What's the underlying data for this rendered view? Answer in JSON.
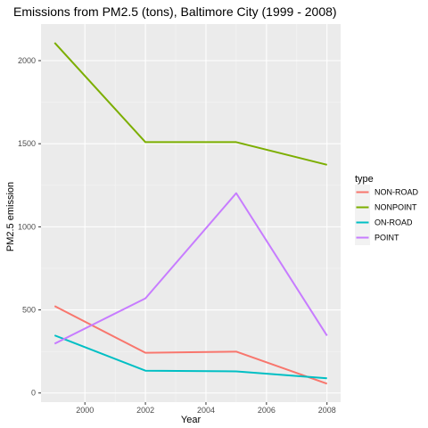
{
  "chart_data": {
    "type": "line",
    "title": "Emissions from PM2.5 (tons), Baltimore City (1999 - 2008)",
    "xlabel": "Year",
    "ylabel": "PM2.5 emission",
    "x": [
      1999,
      2002,
      2005,
      2008
    ],
    "x_ticks": [
      2000,
      2002,
      2004,
      2006,
      2008
    ],
    "y_ticks": [
      0,
      500,
      1000,
      1500,
      2000
    ],
    "xlim": [
      1998.55,
      2008.45
    ],
    "ylim": [
      -55,
      2220
    ],
    "grid": true,
    "legend_title": "type",
    "legend_position": "right",
    "series": [
      {
        "name": "NON-ROAD",
        "color": "#F8766D",
        "values": [
          522.9,
          242.0,
          248.9,
          55.8
        ]
      },
      {
        "name": "NONPOINT",
        "color": "#7CAE00",
        "values": [
          2107.6,
          1509.5,
          1509.5,
          1373.2
        ]
      },
      {
        "name": "ON-ROAD",
        "color": "#00BFC4",
        "values": [
          346.8,
          134.3,
          130.4,
          88.3
        ]
      },
      {
        "name": "POINT",
        "color": "#C77CFF",
        "values": [
          296.8,
          569.3,
          1202.5,
          344.98
        ]
      }
    ]
  }
}
